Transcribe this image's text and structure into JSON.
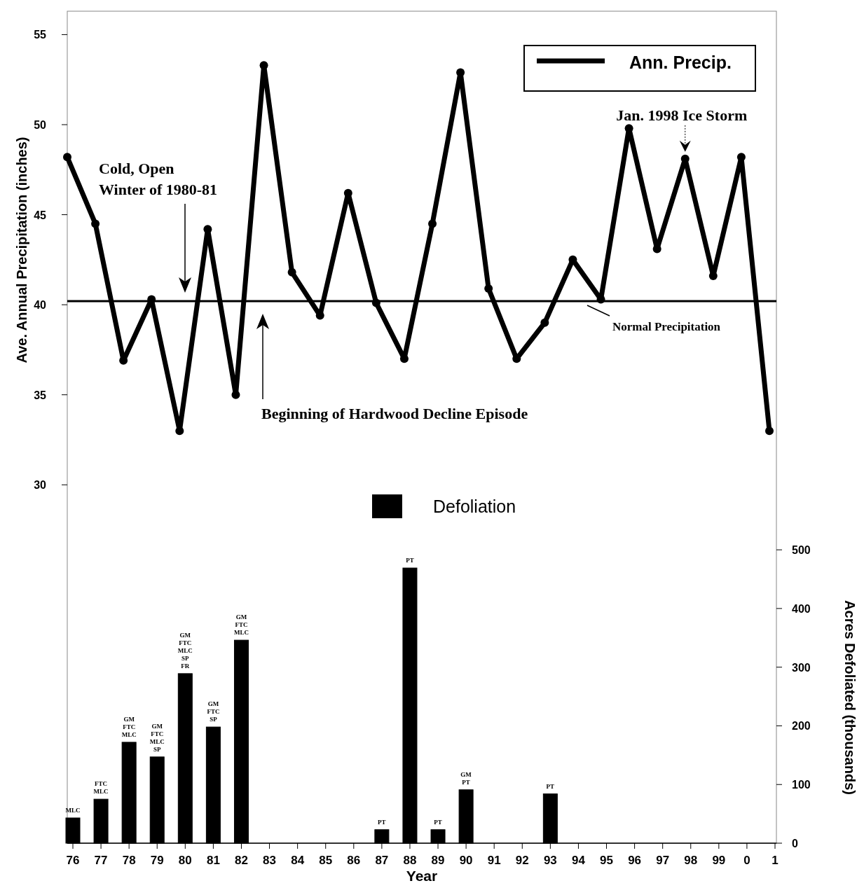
{
  "chart_data": {
    "type": "line",
    "xlabel": "Year",
    "ylabel": "Ave. Annual Precipitation (inches)",
    "y2label": "Acres Defoliated (thousands)",
    "categories": [
      "76",
      "77",
      "78",
      "79",
      "80",
      "81",
      "82",
      "83",
      "84",
      "85",
      "86",
      "87",
      "88",
      "89",
      "90",
      "91",
      "92",
      "93",
      "94",
      "95",
      "96",
      "97",
      "98",
      "99",
      "0",
      "1"
    ],
    "series": [
      {
        "name": "Ann. Precip.",
        "color": "#000000",
        "values": [
          48.2,
          44.5,
          36.9,
          40.3,
          33.0,
          44.2,
          35.0,
          53.3,
          41.8,
          39.4,
          46.2,
          40.1,
          37.0,
          44.5,
          52.9,
          40.9,
          37.0,
          39.0,
          42.5,
          40.3,
          49.8,
          43.1,
          48.1,
          41.6,
          48.2,
          33.0
        ]
      },
      {
        "name": "Defoliation",
        "type": "bar",
        "axis": "y2",
        "color": "#000000",
        "values": [
          43,
          75,
          172,
          147,
          289,
          198,
          346,
          0,
          0,
          0,
          0,
          23,
          469,
          23,
          91,
          0,
          0,
          84,
          0,
          0,
          0,
          0,
          0,
          0,
          0,
          0
        ],
        "value_labels": [
          "MLC",
          "FTC\nMLC",
          "GM\nFTC\nMLC",
          "GM\nFTC\nMLC\nSP",
          "GM\nFTC\nMLC\nSP\nFR",
          "GM\nFTC\nSP",
          "GM\nFTC\nMLC",
          null,
          null,
          null,
          null,
          "PT",
          "PT",
          "PT",
          "GM\nPT",
          null,
          null,
          "PT",
          null,
          null,
          null,
          null,
          null,
          null,
          null,
          null
        ]
      }
    ],
    "ylim": [
      10.1,
      56.3
    ],
    "yticks": [
      30,
      35,
      40,
      45,
      50,
      55
    ],
    "y2lim": [
      0,
      1418
    ],
    "y2ticks": [
      0,
      100,
      200,
      300,
      400,
      500
    ],
    "marker": "circle",
    "legend": "top right",
    "ref_lines": [
      {
        "axis": "y",
        "value": 40.2,
        "label": "Normal Precipitation",
        "color": "#000000"
      }
    ],
    "annotations": [
      "Cold, Open\nWinter of 1980-81",
      "Beginning of Hardwood Decline Episode",
      {
        "text": "Jan. 1998 Ice Storm",
        "x": "98",
        "y": 48.1
      }
    ]
  }
}
